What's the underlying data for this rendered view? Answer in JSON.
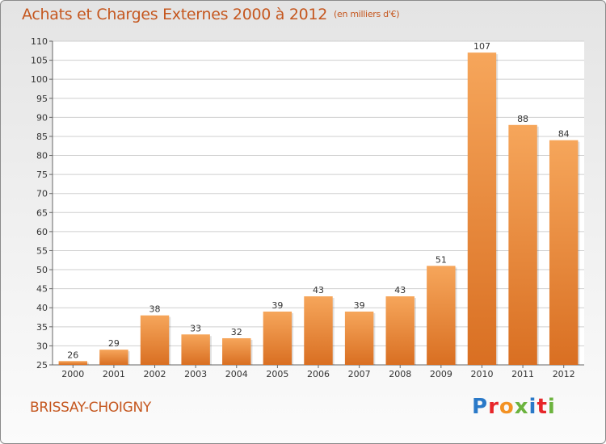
{
  "header": {
    "title": "Achats et Charges Externes 2000 à 2012",
    "subtitle": "(en milliers d'€)"
  },
  "footer": {
    "commune": "BRISSAY-CHOIGNY",
    "logo": {
      "text": "Proxiti",
      "letter_colors": [
        "#2a79c8",
        "#e7262a",
        "#f39224",
        "#6cb33e",
        "#2a79c8",
        "#e7262a",
        "#6cb33e"
      ]
    }
  },
  "colors": {
    "accent": "#c5571f",
    "bar_light": "#f6a65b",
    "bar_dark": "#d96f22",
    "grid": "#cfcfcf",
    "text": "#333333"
  },
  "chart_data": {
    "type": "bar",
    "title": "Achats et Charges Externes 2000 à 2012",
    "subtitle": "(en milliers d'€)",
    "categories": [
      "2000",
      "2001",
      "2002",
      "2003",
      "2004",
      "2005",
      "2006",
      "2007",
      "2008",
      "2009",
      "2010",
      "2011",
      "2012"
    ],
    "values": [
      26,
      29,
      38,
      33,
      32,
      39,
      43,
      39,
      43,
      51,
      107,
      88,
      84
    ],
    "ylim": [
      25,
      110
    ],
    "yticks": [
      25,
      30,
      35,
      40,
      45,
      50,
      55,
      60,
      65,
      70,
      75,
      80,
      85,
      90,
      95,
      100,
      105,
      110
    ],
    "data_labels": [
      "26",
      "29",
      "38",
      "33",
      "32",
      "39",
      "43",
      "39",
      "43",
      "51",
      "107",
      "88",
      "84"
    ],
    "grid": true,
    "legend": "none"
  }
}
